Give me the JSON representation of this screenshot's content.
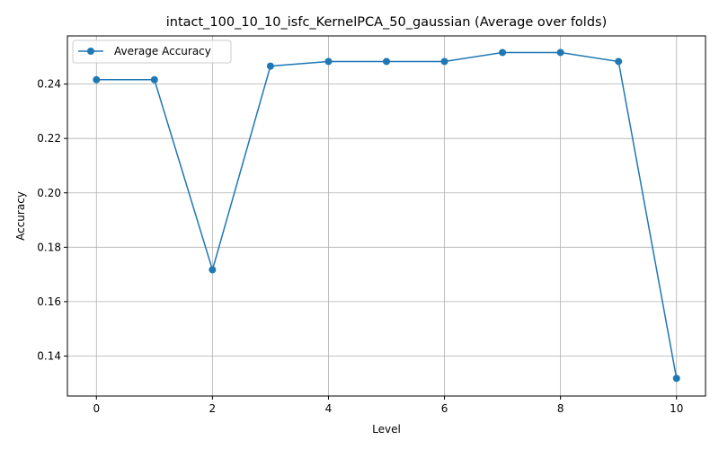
{
  "chart_data": {
    "type": "line",
    "title": "intact_100_10_10_isfc_KernelPCA_50_gaussian (Average over folds)",
    "xlabel": "Level",
    "ylabel": "Accuracy",
    "xlim": [
      -0.5,
      10.5
    ],
    "ylim": [
      0.1253,
      0.2577
    ],
    "xticks": [
      0,
      2,
      4,
      6,
      8,
      10
    ],
    "xtick_labels": [
      "0",
      "2",
      "4",
      "6",
      "8",
      "10"
    ],
    "yticks": [
      0.14,
      0.16,
      0.18,
      0.2,
      0.22,
      0.24
    ],
    "ytick_labels": [
      "0.14",
      "0.16",
      "0.18",
      "0.20",
      "0.22",
      "0.24"
    ],
    "grid": true,
    "legend_position": "top-left",
    "series": [
      {
        "name": "Average Accuracy",
        "color": "#1f77b4",
        "marker": "circle",
        "x": [
          0,
          1,
          2,
          3,
          4,
          5,
          6,
          7,
          8,
          9,
          10
        ],
        "y": [
          0.2416,
          0.2416,
          0.1717,
          0.2466,
          0.2483,
          0.2483,
          0.2483,
          0.2516,
          0.2516,
          0.2483,
          0.1318
        ]
      }
    ]
  }
}
